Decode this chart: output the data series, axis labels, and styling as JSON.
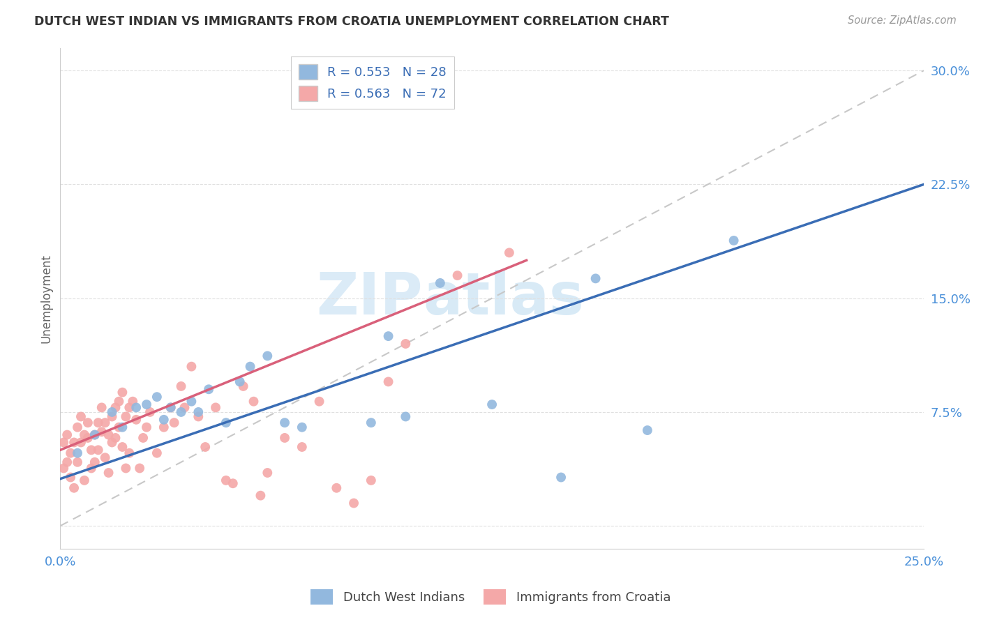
{
  "title": "DUTCH WEST INDIAN VS IMMIGRANTS FROM CROATIA UNEMPLOYMENT CORRELATION CHART",
  "source_text": "Source: ZipAtlas.com",
  "ylabel": "Unemployment",
  "xlim": [
    0.0,
    0.25
  ],
  "ylim": [
    -0.015,
    0.315
  ],
  "legend_r1": "R = 0.553",
  "legend_n1": "N = 28",
  "legend_r2": "R = 0.563",
  "legend_n2": "N = 72",
  "blue_color": "#92b8de",
  "pink_color": "#f4a8a8",
  "blue_line_color": "#3a6db5",
  "pink_line_color": "#d9607a",
  "dash_line_color": "#c8c8c8",
  "watermark_zip": "ZIP",
  "watermark_atlas": "atlas",
  "blue_line_x0": 0.0,
  "blue_line_y0": 0.031,
  "blue_line_x1": 0.25,
  "blue_line_y1": 0.225,
  "pink_line_x0": 0.0,
  "pink_line_y0": 0.05,
  "pink_line_x1": 0.135,
  "pink_line_y1": 0.175,
  "blue_scatter_x": [
    0.005,
    0.01,
    0.015,
    0.018,
    0.022,
    0.025,
    0.028,
    0.03,
    0.032,
    0.035,
    0.038,
    0.04,
    0.043,
    0.048,
    0.052,
    0.055,
    0.06,
    0.065,
    0.07,
    0.09,
    0.095,
    0.1,
    0.11,
    0.125,
    0.145,
    0.155,
    0.17,
    0.195
  ],
  "blue_scatter_y": [
    0.048,
    0.06,
    0.075,
    0.065,
    0.078,
    0.08,
    0.085,
    0.07,
    0.078,
    0.075,
    0.082,
    0.075,
    0.09,
    0.068,
    0.095,
    0.105,
    0.112,
    0.068,
    0.065,
    0.068,
    0.125,
    0.072,
    0.16,
    0.08,
    0.032,
    0.163,
    0.063,
    0.188
  ],
  "pink_scatter_x": [
    0.001,
    0.001,
    0.002,
    0.002,
    0.003,
    0.003,
    0.004,
    0.004,
    0.005,
    0.005,
    0.006,
    0.006,
    0.007,
    0.007,
    0.008,
    0.008,
    0.009,
    0.009,
    0.01,
    0.01,
    0.011,
    0.011,
    0.012,
    0.012,
    0.013,
    0.013,
    0.014,
    0.014,
    0.015,
    0.015,
    0.016,
    0.016,
    0.017,
    0.017,
    0.018,
    0.018,
    0.019,
    0.019,
    0.02,
    0.02,
    0.021,
    0.022,
    0.023,
    0.024,
    0.025,
    0.026,
    0.028,
    0.03,
    0.032,
    0.033,
    0.035,
    0.036,
    0.038,
    0.04,
    0.042,
    0.045,
    0.048,
    0.05,
    0.053,
    0.056,
    0.058,
    0.06,
    0.065,
    0.07,
    0.075,
    0.08,
    0.085,
    0.09,
    0.095,
    0.1,
    0.115,
    0.13
  ],
  "pink_scatter_y": [
    0.038,
    0.055,
    0.042,
    0.06,
    0.032,
    0.048,
    0.025,
    0.055,
    0.042,
    0.065,
    0.055,
    0.072,
    0.03,
    0.06,
    0.058,
    0.068,
    0.038,
    0.05,
    0.042,
    0.06,
    0.05,
    0.068,
    0.062,
    0.078,
    0.045,
    0.068,
    0.035,
    0.06,
    0.055,
    0.072,
    0.058,
    0.078,
    0.065,
    0.082,
    0.052,
    0.088,
    0.038,
    0.072,
    0.048,
    0.078,
    0.082,
    0.07,
    0.038,
    0.058,
    0.065,
    0.075,
    0.048,
    0.065,
    0.078,
    0.068,
    0.092,
    0.078,
    0.105,
    0.072,
    0.052,
    0.078,
    0.03,
    0.028,
    0.092,
    0.082,
    0.02,
    0.035,
    0.058,
    0.052,
    0.082,
    0.025,
    0.015,
    0.03,
    0.095,
    0.12,
    0.165,
    0.18
  ]
}
